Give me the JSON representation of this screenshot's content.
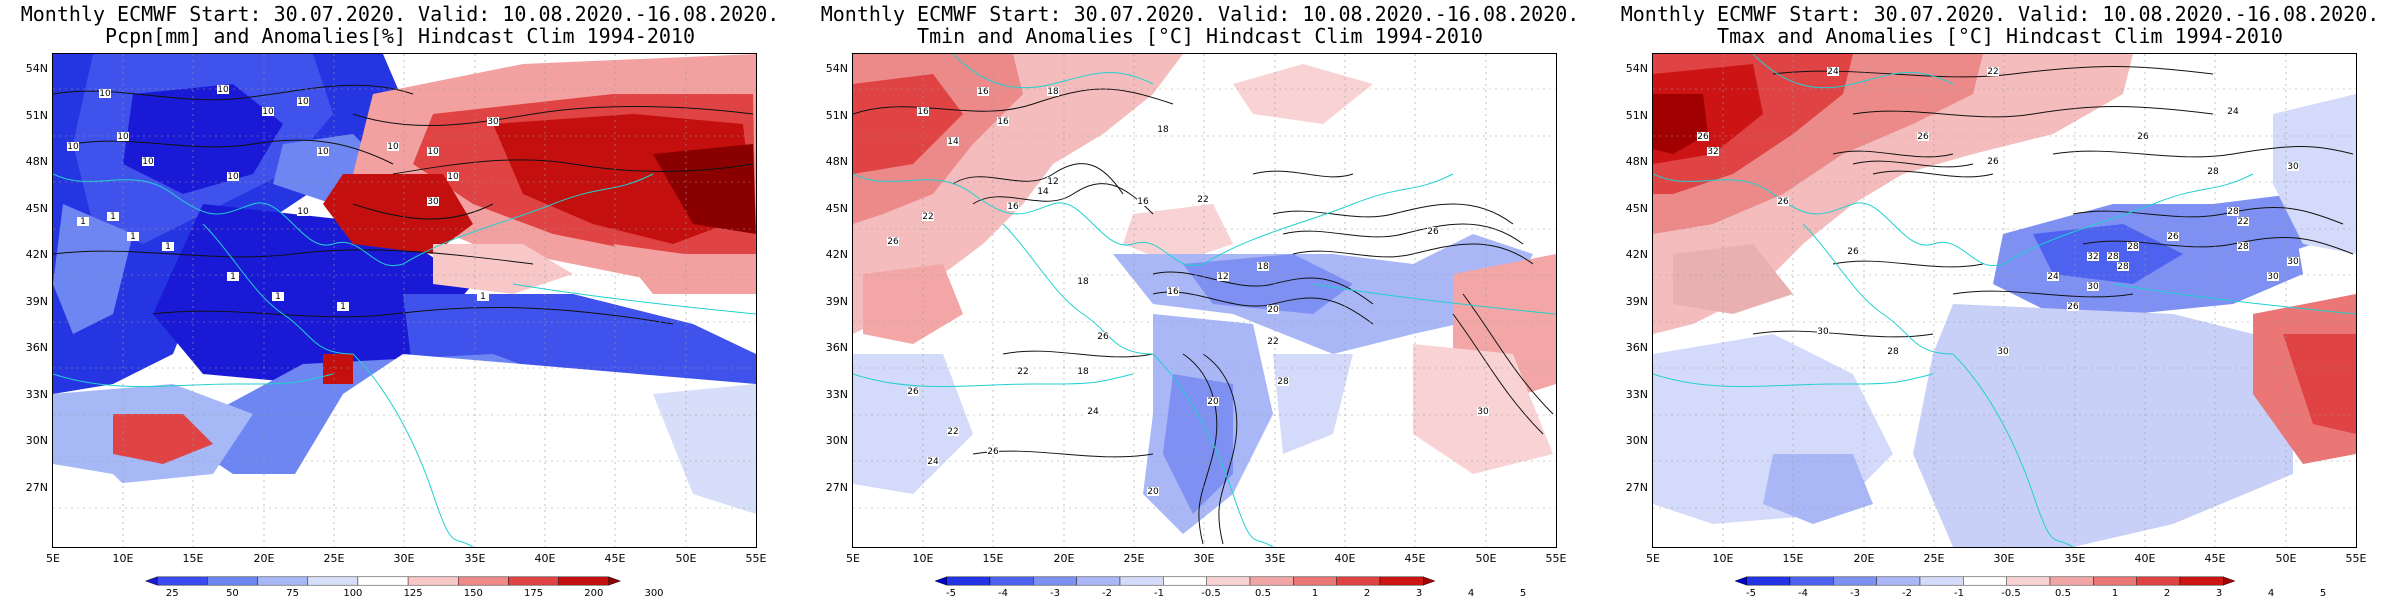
{
  "panels": [
    {
      "title_line1": "Monthly ECMWF Start: 30.07.2020. Valid: 10.08.2020.-16.08.2020.",
      "title_line2": "Pcpn[mm] and Anomalies[%] Hindcast Clim 1994-2010",
      "lat_labels": [
        "54N",
        "51N",
        "48N",
        "45N",
        "42N",
        "39N",
        "36N",
        "33N",
        "30N",
        "27N"
      ],
      "lon_labels": [
        "5E",
        "10E",
        "15E",
        "20E",
        "25E",
        "30E",
        "35E",
        "40E",
        "45E",
        "50E",
        "55E"
      ],
      "colorbar_labels": [
        "25",
        "50",
        "75",
        "100",
        "125",
        "150",
        "175",
        "200",
        "300"
      ],
      "colorbar_colors": [
        "#1a1ad6",
        "#3a4af0",
        "#6e86f2",
        "#a7b8f6",
        "#d6def9",
        "#ffffff",
        "#f8c8c8",
        "#ef8a8a",
        "#e04343",
        "#c40f0f",
        "#8a0000"
      ]
    },
    {
      "title_line1": "Monthly ECMWF Start: 30.07.2020. Valid: 10.08.2020.-16.08.2020.",
      "title_line2": "Tmin and Anomalies [°C] Hindcast Clim 1994-2010",
      "lat_labels": [
        "54N",
        "51N",
        "48N",
        "45N",
        "42N",
        "39N",
        "36N",
        "33N",
        "30N",
        "27N"
      ],
      "lon_labels": [
        "5E",
        "10E",
        "15E",
        "20E",
        "25E",
        "30E",
        "35E",
        "40E",
        "45E",
        "50E",
        "55E"
      ],
      "colorbar_labels": [
        "-5",
        "-4",
        "-3",
        "-2",
        "-1",
        "-0.5",
        "0.5",
        "1",
        "2",
        "3",
        "4",
        "5"
      ],
      "colorbar_colors": [
        "#0000cc",
        "#2233e6",
        "#4e62f0",
        "#7e91f3",
        "#aab7f6",
        "#d4dafa",
        "#ffffff",
        "#f9d3d3",
        "#f2a6a6",
        "#ea7676",
        "#e04343",
        "#cc1414",
        "#a00000"
      ]
    },
    {
      "title_line1": "Monthly ECMWF Start: 30.07.2020. Valid: 10.08.2020.-16.08.2020.",
      "title_line2": "Tmax and Anomalies [°C] Hindcast Clim 1994-2010",
      "lat_labels": [
        "54N",
        "51N",
        "48N",
        "45N",
        "42N",
        "39N",
        "36N",
        "33N",
        "30N",
        "27N"
      ],
      "lon_labels": [
        "5E",
        "10E",
        "15E",
        "20E",
        "25E",
        "30E",
        "35E",
        "40E",
        "45E",
        "50E",
        "55E"
      ],
      "colorbar_labels": [
        "-5",
        "-4",
        "-3",
        "-2",
        "-1",
        "-0.5",
        "0.5",
        "1",
        "2",
        "3",
        "4",
        "5"
      ],
      "colorbar_colors": [
        "#0000cc",
        "#2233e6",
        "#4e62f0",
        "#7e91f3",
        "#aab7f6",
        "#d4dafa",
        "#ffffff",
        "#f9d3d3",
        "#f2a6a6",
        "#ea7676",
        "#e04343",
        "#cc1414",
        "#a00000"
      ]
    }
  ],
  "contour_labels": {
    "p0": [
      "10",
      "10",
      "10",
      "10",
      "10",
      "10",
      "10",
      "10",
      "10",
      "10",
      "10",
      "30",
      "30",
      "10",
      "10",
      "1",
      "1",
      "1",
      "1",
      "1",
      "1",
      "1",
      "1"
    ],
    "p1": [
      "16",
      "16",
      "16",
      "18",
      "18",
      "14",
      "12",
      "16",
      "14",
      "16",
      "22",
      "26",
      "22",
      "18",
      "12",
      "16",
      "18",
      "20",
      "24",
      "26",
      "22",
      "28",
      "20",
      "22",
      "26",
      "26",
      "30",
      "22",
      "24",
      "26",
      "20",
      "18"
    ],
    "p2": [
      "24",
      "22",
      "26",
      "26",
      "26",
      "24",
      "30",
      "28",
      "26",
      "28",
      "22",
      "26",
      "30",
      "28",
      "24",
      "32",
      "28",
      "26",
      "30",
      "28",
      "28",
      "30",
      "26",
      "30",
      "26",
      "28",
      "30",
      "32"
    ]
  }
}
